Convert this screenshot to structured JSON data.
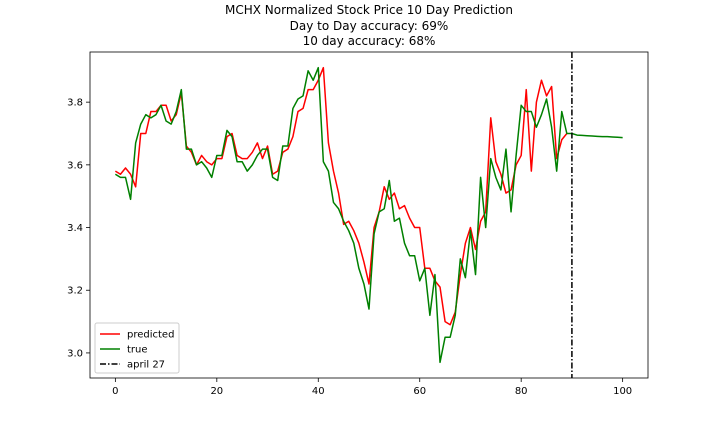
{
  "chart_data": {
    "type": "line",
    "title": "MCHX Normalized Stock Price 10 Day Prediction",
    "subtitle_lines": [
      "Day to Day accuracy: 69%",
      "10 day accuracy: 68%"
    ],
    "xlabel": "",
    "ylabel": "",
    "xlim": [
      -5,
      105
    ],
    "ylim": [
      2.92,
      3.96
    ],
    "x_ticks": [
      0,
      20,
      40,
      60,
      80,
      100
    ],
    "y_ticks": [
      3.0,
      3.2,
      3.4,
      3.6,
      3.8
    ],
    "y_tick_labels": [
      "3.0",
      "3.2",
      "3.4",
      "3.6",
      "3.8"
    ],
    "grid": false,
    "legend_position": "lower-left",
    "series": [
      {
        "name": "predicted",
        "color": "#ff0000",
        "style": "solid",
        "x_start": 0,
        "values": [
          3.58,
          3.57,
          3.59,
          3.57,
          3.53,
          3.7,
          3.7,
          3.77,
          3.77,
          3.79,
          3.79,
          3.74,
          3.76,
          3.83,
          3.66,
          3.64,
          3.6,
          3.63,
          3.61,
          3.6,
          3.62,
          3.62,
          3.69,
          3.7,
          3.63,
          3.62,
          3.62,
          3.64,
          3.67,
          3.62,
          3.66,
          3.57,
          3.58,
          3.64,
          3.65,
          3.69,
          3.77,
          3.78,
          3.84,
          3.84,
          3.87,
          3.91,
          3.67,
          3.58,
          3.51,
          3.41,
          3.42,
          3.39,
          3.35,
          3.29,
          3.22,
          3.4,
          3.45,
          3.53,
          3.49,
          3.51,
          3.46,
          3.47,
          3.43,
          3.4,
          3.4,
          3.27,
          3.27,
          3.23,
          3.21,
          3.1,
          3.09,
          3.13,
          3.25,
          3.35,
          3.4,
          3.33,
          3.42,
          3.45,
          3.75,
          3.61,
          3.57,
          3.51,
          3.52,
          3.6,
          3.63,
          3.84,
          3.58,
          3.8,
          3.87,
          3.82,
          3.85,
          3.62,
          3.68,
          3.7
        ]
      },
      {
        "name": "true",
        "color": "#008000",
        "style": "solid",
        "x_start": 0,
        "values": [
          3.57,
          3.56,
          3.56,
          3.49,
          3.67,
          3.73,
          3.76,
          3.75,
          3.76,
          3.79,
          3.74,
          3.73,
          3.77,
          3.84,
          3.65,
          3.65,
          3.6,
          3.61,
          3.59,
          3.56,
          3.63,
          3.63,
          3.71,
          3.69,
          3.61,
          3.61,
          3.58,
          3.6,
          3.63,
          3.65,
          3.65,
          3.56,
          3.55,
          3.66,
          3.66,
          3.78,
          3.81,
          3.82,
          3.9,
          3.87,
          3.91,
          3.61,
          3.58,
          3.48,
          3.46,
          3.42,
          3.39,
          3.35,
          3.27,
          3.22,
          3.14,
          3.38,
          3.45,
          3.46,
          3.55,
          3.42,
          3.43,
          3.35,
          3.31,
          3.31,
          3.23,
          3.27,
          3.12,
          3.25,
          2.97,
          3.05,
          3.05,
          3.12,
          3.3,
          3.24,
          3.39,
          3.25,
          3.56,
          3.4,
          3.62,
          3.56,
          3.52,
          3.65,
          3.45,
          3.63,
          3.79,
          3.77,
          3.77,
          3.72,
          3.76,
          3.81,
          3.72,
          3.58,
          3.77,
          3.7,
          3.7,
          3.695,
          3.694,
          3.693,
          3.692,
          3.691,
          3.69,
          3.69,
          3.689,
          3.688,
          3.687
        ]
      }
    ],
    "vline": {
      "name": "april 27",
      "x": 90,
      "color": "#000000",
      "style": "dashdot"
    }
  }
}
